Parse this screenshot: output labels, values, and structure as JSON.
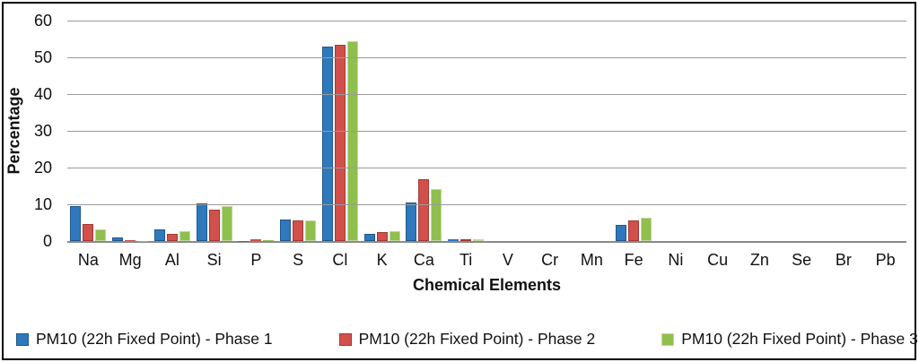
{
  "chart_data": {
    "type": "bar",
    "title": "",
    "xlabel": "Chemical Elements",
    "ylabel": "Percentage",
    "ylim": [
      0,
      60
    ],
    "yticks": [
      0,
      10,
      20,
      30,
      40,
      50,
      60
    ],
    "grid": "horizontal-gray",
    "legend_position": "bottom",
    "categories": [
      "Na",
      "Mg",
      "Al",
      "Si",
      "P",
      "S",
      "Cl",
      "K",
      "Ca",
      "Ti",
      "V",
      "Cr",
      "Mn",
      "Fe",
      "Ni",
      "Cu",
      "Zn",
      "Se",
      "Br",
      "Pb"
    ],
    "series": [
      {
        "name": "PM10 (22h Fixed Point) - Phase 1",
        "color": "#2E79BD",
        "border_color": "#20578A",
        "values": [
          9.5,
          1.0,
          3.1,
          10.3,
          0.05,
          5.9,
          53.0,
          2.0,
          10.5,
          0.4,
          0,
          0,
          0,
          4.5,
          0,
          0,
          0,
          0,
          0,
          0
        ]
      },
      {
        "name": "PM10 (22h Fixed Point) - Phase 2",
        "color": "#D1504B",
        "border_color": "#A33935",
        "values": [
          4.6,
          0.15,
          1.9,
          8.6,
          0.4,
          5.7,
          53.5,
          2.5,
          16.8,
          0.6,
          0,
          0,
          0,
          5.5,
          0,
          0,
          0,
          0,
          0,
          0
        ]
      },
      {
        "name": "PM10 (22h Fixed Point) - Phase 3",
        "color": "#8FBF4D",
        "border_color": "#C2D79B",
        "values": [
          3.2,
          0.1,
          2.6,
          9.6,
          0.2,
          5.6,
          54.5,
          2.7,
          14.2,
          0.6,
          0,
          0,
          0,
          6.3,
          0,
          0,
          0,
          0,
          0,
          0
        ]
      }
    ]
  },
  "style": {
    "gridline_color": "#9a9a9a",
    "axis_line_color": "#8a8a8a",
    "frame_border_color": "#000000",
    "background": "#ffffff"
  }
}
